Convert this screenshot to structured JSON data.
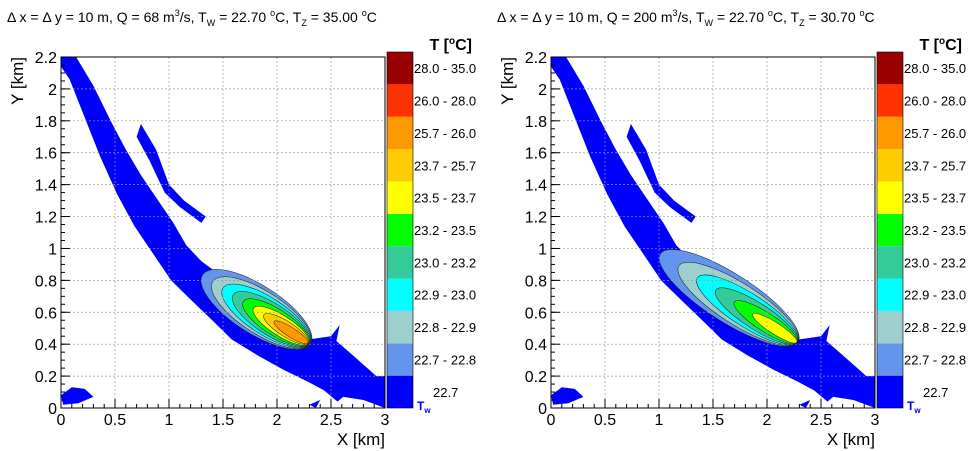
{
  "chart_data": [
    {
      "type": "heatmap",
      "title": "Δ x = Δ y = 10 m, Q = 68 m³/s, T_W = 22.70 °C, T_Z = 35.00 °C",
      "title_parts": {
        "a": "Δ x = Δ y = 10 m, Q = 68 m",
        "b": "3",
        "c": "/s, T",
        "d": "W",
        "e": " = 22.70 ",
        "f": "o",
        "g": "C, T",
        "h": "Z",
        "i": " = 35.00 ",
        "j": "o",
        "k": "C"
      },
      "xlabel": "X [km]",
      "ylabel": "Y [km]",
      "xlim": [
        0,
        3
      ],
      "ylim": [
        0,
        2.2
      ],
      "xticks": [
        "0",
        "0.5",
        "1",
        "1.5",
        "2",
        "2.5",
        "3"
      ],
      "yticks": [
        "0",
        "0.2",
        "0.4",
        "0.6",
        "0.8",
        "1",
        "1.2",
        "1.4",
        "1.6",
        "1.8",
        "2",
        "2.2"
      ],
      "grid": true,
      "colorbar_title": "T [°C]",
      "colorbar_title_parts": {
        "a": "T [",
        "b": "o",
        "c": "C]"
      },
      "colorbar_min_label": "T",
      "colorbar_min_sub": "w",
      "levels": [
        "22.7",
        "22.7 - 22.8",
        "22.8 - 22.9",
        "22.9 - 23.0",
        "23.0 - 23.2",
        "23.2 - 23.5",
        "23.5 - 23.7",
        "23.7 - 25.7",
        "25.7 - 26.0",
        "26.0 - 28.0",
        "28.0 - 35.0"
      ],
      "plume_extent_x_km": [
        1.3,
        2.32
      ],
      "peak_x_km": 2.2
    },
    {
      "type": "heatmap",
      "title": "Δ x = Δ y = 10 m, Q = 200 m³/s, T_W = 22.70 °C, T_Z = 30.70 °C",
      "title_parts": {
        "a": "Δ x = Δ y = 10 m, Q = 200 m",
        "b": "3",
        "c": "/s, T",
        "d": "W",
        "e": " = 22.70 ",
        "f": "o",
        "g": "C, T",
        "h": "Z",
        "i": " = 30.70 ",
        "j": "o",
        "k": "C"
      },
      "xlabel": "X [km]",
      "ylabel": "Y [km]",
      "xlim": [
        0,
        3
      ],
      "ylim": [
        0,
        2.2
      ],
      "xticks": [
        "0",
        "0.5",
        "1",
        "1.5",
        "2",
        "2.5",
        "3"
      ],
      "yticks": [
        "0",
        "0.2",
        "0.4",
        "0.6",
        "0.8",
        "1",
        "1.2",
        "1.4",
        "1.6",
        "1.8",
        "2",
        "2.2"
      ],
      "grid": true,
      "colorbar_title": "T [°C]",
      "colorbar_title_parts": {
        "a": "T [",
        "b": "o",
        "c": "C]"
      },
      "colorbar_min_label": "T",
      "colorbar_min_sub": "w",
      "levels": [
        "22.7",
        "22.7 - 22.8",
        "22.8 - 22.9",
        "22.9 - 23.0",
        "23.0 - 23.2",
        "23.2 - 23.5",
        "23.5 - 23.7",
        "23.7 - 25.7",
        "25.7 - 26.0",
        "26.0 - 28.0",
        "28.0 - 35.0"
      ],
      "plume_extent_x_km": [
        1.0,
        2.3
      ],
      "peak_x_km": 2.22
    }
  ],
  "colors": {
    "levels": [
      "#0000ff",
      "#6495ed",
      "#9ecfcf",
      "#00ffff",
      "#33cc99",
      "#00ff00",
      "#ffff00",
      "#ffcc00",
      "#ff9900",
      "#ff3300",
      "#990000"
    ],
    "tw_label": "#0000ff",
    "grid": "#9a9a9a"
  }
}
